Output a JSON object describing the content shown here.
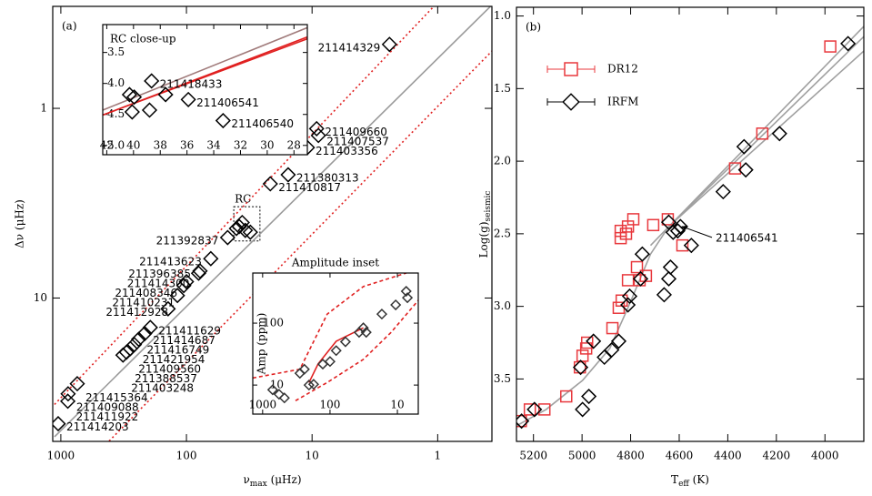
{
  "chart_data": [
    {
      "type": "scatter",
      "label": "(a)",
      "ylabel": "Δν (μHz)",
      "xlabel": {
        "main": "ν",
        "sub": "max",
        "rest": " (μHz)"
      },
      "xscale": "log",
      "yscale": "log",
      "xlim": [
        1160,
        0.37
      ],
      "ylim": [
        57,
        0.29
      ],
      "xticks": [
        1000,
        100,
        10,
        1
      ],
      "yticks": [
        1,
        10
      ],
      "rc_box": {
        "label": "RC",
        "x": [
          42,
          26
        ],
        "y": [
          5.0,
          3.3
        ]
      },
      "series": [
        {
          "style": "line",
          "color": "#9a9a9a",
          "x": [
            1123,
            0.36
          ],
          "values": [
            53.9,
            0.28
          ]
        },
        {
          "style": "dotted",
          "color": "#e02020",
          "x": [
            1123,
            1.02
          ],
          "values": [
            36.4,
            0.28
          ]
        },
        {
          "style": "dotted",
          "color": "#e02020",
          "x": [
            413,
            0.36
          ],
          "values": [
            56.8,
            0.49
          ]
        },
        {
          "style": "markers",
          "marker": "diamond",
          "color": "#000000",
          "x": [
            2.42,
            9.2,
            8.9,
            10.9,
            15.5,
            21.5,
            36,
            38,
            40,
            34,
            31,
            47,
            64,
            78,
            80,
            100,
            105,
            118,
            140,
            194,
            215,
            240,
            260,
            280,
            300,
            320,
            740,
            875,
            880,
            1050
          ],
          "values": [
            0.46,
            1.28,
            1.39,
            1.61,
            2.24,
            2.5,
            4.0,
            4.2,
            4.3,
            4.4,
            4.5,
            4.8,
            6.2,
            7.2,
            7.4,
            8.2,
            8.6,
            9.7,
            11.4,
            14.3,
            15.4,
            16.5,
            17.6,
            18.5,
            19.3,
            20,
            28.3,
            32,
            35,
            46
          ],
          "labels": [
            "211414329",
            "211409660",
            "211407537",
            "211403356",
            "211380313",
            "211410817",
            null,
            null,
            null,
            null,
            null,
            "211392837",
            "211413623",
            "211396385",
            "211414300",
            "211408346",
            "211410231",
            "211412928",
            null,
            "211411629",
            "211414687",
            "211416749",
            "211421954",
            "211409560",
            "211388537",
            "211403248",
            "211415364",
            "211409088",
            "211411922",
            "211414203"
          ]
        }
      ]
    },
    {
      "type": "scatter",
      "title": "RC close-up",
      "xlim": [
        42.3,
        27
      ],
      "ylim": [
        5.15,
        3.05
      ],
      "xticks": [
        42,
        40,
        38,
        36,
        34,
        32,
        30,
        28
      ],
      "yticks": [
        3.5,
        {
          "value": 4,
          "label": "4.0"
        },
        4.5,
        {
          "value": 5,
          "label": "5.0"
        }
      ],
      "series": [
        {
          "style": "line",
          "color": "#a07a7a",
          "x": [
            42.3,
            27
          ],
          "values": [
            4.43,
            3.1
          ]
        },
        {
          "style": "line",
          "color": "#e02020",
          "x": [
            42.3,
            27
          ],
          "values": [
            4.51,
            3.25
          ]
        },
        {
          "style": "line",
          "color": "#e02020",
          "x": [
            42.3,
            27
          ],
          "values": [
            4.51,
            3.28
          ]
        },
        {
          "style": "markers",
          "marker": "diamond",
          "color": "#000000",
          "x": [
            38.65,
            40.3,
            39.95,
            37.6,
            35.9,
            40.1,
            38.8,
            33.3
          ],
          "values": [
            3.96,
            4.18,
            4.22,
            4.18,
            4.26,
            4.46,
            4.43,
            4.6
          ],
          "labels": [
            "211418433",
            null,
            null,
            null,
            "211406541",
            null,
            null,
            "211406540"
          ]
        }
      ]
    },
    {
      "type": "scatter",
      "title": "Amplitude inset",
      "ylabel": "Amp (ppm)",
      "xscale": "log",
      "yscale": "log",
      "xlim": [
        1400,
        4.9
      ],
      "ylim": [
        3.4,
        644
      ],
      "xticks": [
        1000,
        100,
        10
      ],
      "yticks": [
        10,
        100
      ],
      "series": [
        {
          "style": "dashed",
          "color": "#e02020",
          "x": [
            1400,
            280,
            110,
            32,
            7.4
          ],
          "values": [
            13,
            18,
            140,
            390,
            644
          ]
        },
        {
          "style": "dashed",
          "color": "#e02020",
          "x": [
            325,
            110,
            32,
            12.4,
            4.9
          ],
          "values": [
            5.6,
            11,
            26,
            71,
            233
          ]
        },
        {
          "style": "line",
          "color": "#e02020",
          "x": [
            205,
            150,
            81,
            32
          ],
          "values": [
            11,
            22,
            51,
            84
          ]
        },
        {
          "style": "markers",
          "marker": "diamond",
          "color": "#333333",
          "x": [
            710,
            570,
            475,
            280,
            240,
            205,
            175,
            128,
            100,
            81,
            59,
            37,
            32,
            29,
            17,
            10.6,
            7.4,
            7.1
          ],
          "values": [
            8.4,
            7.1,
            6.2,
            15.5,
            18,
            10,
            10.3,
            21.8,
            24,
            36,
            50,
            71,
            84,
            71,
            140,
            197,
            327,
            257
          ]
        }
      ]
    },
    {
      "type": "scatter",
      "label": "(b)",
      "ylabel": {
        "main": "Log(g)",
        "sub": "seismic"
      },
      "xlabel": {
        "main": "T",
        "sub": "eff",
        "rest": " (K)"
      },
      "xlim": [
        5270,
        3840
      ],
      "ylim": [
        3.93,
        0.94
      ],
      "xticks": [
        5200,
        5000,
        4800,
        4600,
        4400,
        4200,
        4000
      ],
      "yticks": [
        {
          "value": 1,
          "label": "1.0"
        },
        1.5,
        {
          "value": 2,
          "label": "2.0"
        },
        2.5,
        {
          "value": 3,
          "label": "3.0"
        },
        3.5
      ],
      "legend": "upper left",
      "annotations": [
        {
          "text": "211406541",
          "x": 4600,
          "y": 2.45
        }
      ],
      "series": [
        {
          "style": "line",
          "color": "#a0a0a0",
          "x": [
            5267,
            5148,
            4998,
            4886,
            4811,
            4718,
            4643,
            3839
          ],
          "values": [
            3.82,
            3.71,
            3.51,
            3.29,
            3.01,
            2.64,
            2.45,
            1.14
          ]
        },
        {
          "style": "line",
          "color": "#a0a0a0",
          "x": [
            4643,
            3839
          ],
          "values": [
            2.45,
            1.24
          ]
        },
        {
          "style": "line",
          "color": "#a0a0a0",
          "x": [
            4718,
            3839
          ],
          "values": [
            2.58,
            1.07
          ]
        },
        {
          "style": "markers",
          "marker": "square",
          "name": "DR12",
          "color": "#e8383d",
          "x": [
            5252,
            5215,
            5155,
            5065,
            5009,
            4998,
            4983,
            4979,
            4875,
            4849,
            4837,
            4811,
            4774,
            4763,
            4737,
            4841,
            4819,
            4841,
            4811,
            4789,
            4707,
            4647,
            4587,
            4370,
            4258,
            3978
          ],
          "values": [
            3.79,
            3.71,
            3.71,
            3.62,
            3.42,
            3.34,
            3.29,
            3.25,
            3.15,
            3.01,
            2.96,
            2.82,
            2.73,
            2.82,
            2.79,
            2.53,
            2.5,
            2.48,
            2.45,
            2.4,
            2.44,
            2.4,
            2.58,
            2.05,
            1.81,
            1.21
          ]
        },
        {
          "style": "markers",
          "marker": "diamond",
          "name": "IRFM",
          "color": "#000000",
          "x": [
            5249,
            5196,
            4998,
            4953,
            5006,
            4972,
            4908,
            4878,
            4849,
            4811,
            4804,
            4759,
            4752,
            4662,
            4643,
            4636,
            4643,
            4625,
            4606,
            4595,
            4550,
            4419,
            4326,
            4333,
            4187,
            3905
          ],
          "values": [
            3.79,
            3.71,
            3.71,
            3.24,
            3.42,
            3.62,
            3.35,
            3.3,
            3.24,
            2.99,
            2.93,
            2.81,
            2.64,
            2.92,
            2.81,
            2.73,
            2.42,
            2.49,
            2.48,
            2.45,
            2.58,
            2.21,
            2.06,
            1.9,
            1.81,
            1.19
          ]
        }
      ]
    }
  ]
}
